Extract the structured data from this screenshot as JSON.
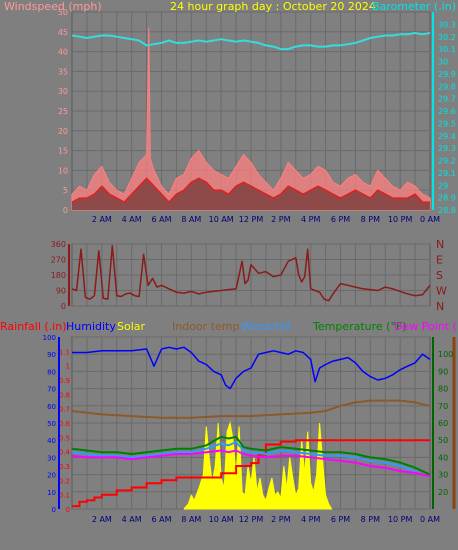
{
  "colors": {
    "background": "#7f7f7f",
    "plot_bg": "#808080",
    "grid": "#666666",
    "title": "#ffff00",
    "wind_label": "#ff9999",
    "baro_label": "#00e5e5",
    "baro_line": "#33dddd",
    "wind_gust": "#ff8080",
    "wind_avg": "#e02020",
    "wind_dark": "#804040",
    "winddir": "#8b1a1a",
    "rain": "#ff0000",
    "humidity": "#0000ff",
    "solar": "#ffff00",
    "indoor": "#8b5a2b",
    "windchill": "#3399ff",
    "temperature": "#008000",
    "dewpoint": "#ff00ff",
    "right_temp_axis": "#006400",
    "right_temp_axis_bar": "#8b4513",
    "axis_blue": "#0000ff"
  },
  "chart_data": [
    {
      "type": "line",
      "title": "24 hour graph day : October 20 2024",
      "x_ticks": [
        "2 AM",
        "4 AM",
        "6 AM",
        "8 AM",
        "10 AM",
        "12 PM",
        "2 PM",
        "4 PM",
        "6 PM",
        "8 PM",
        "10 PM",
        "0 AM"
      ],
      "y_left_label": "Windspeed (mph)",
      "y_left_ticks": [
        "0",
        "5",
        "10",
        "15",
        "20",
        "25",
        "30",
        "35",
        "40",
        "45",
        "50"
      ],
      "y_left_range": [
        0,
        50
      ],
      "y_right_label": "Barometer (.in)",
      "y_right_ticks": [
        "28.8",
        "28.9",
        "29",
        "29.1",
        "29.2",
        "29.3",
        "29.4",
        "29.5",
        "29.6",
        "29.7",
        "29.8",
        "29.9",
        "30",
        "30.1",
        "30.2",
        "30.3"
      ],
      "y_right_range": [
        28.8,
        30.4
      ],
      "series": [
        {
          "name": "Barometer (.in)",
          "axis": "right",
          "x_hours": [
            0,
            0.5,
            1,
            1.5,
            2,
            2.5,
            3,
            3.5,
            4,
            4.5,
            5,
            5.5,
            6,
            6.5,
            7,
            7.5,
            8,
            8.5,
            9,
            9.5,
            10,
            10.5,
            11,
            11.5,
            12,
            12.5,
            13,
            13.5,
            14,
            14.5,
            15,
            15.5,
            16,
            16.5,
            17,
            17.5,
            18,
            18.5,
            19,
            19.5,
            20,
            20.5,
            21,
            21.5,
            22,
            22.5,
            23,
            23.5,
            24
          ],
          "values": [
            30.21,
            30.2,
            30.19,
            30.2,
            30.21,
            30.21,
            30.2,
            30.19,
            30.18,
            30.17,
            30.13,
            30.14,
            30.15,
            30.17,
            30.15,
            30.15,
            30.16,
            30.17,
            30.16,
            30.17,
            30.18,
            30.17,
            30.16,
            30.17,
            30.16,
            30.15,
            30.13,
            30.12,
            30.1,
            30.1,
            30.12,
            30.13,
            30.13,
            30.12,
            30.12,
            30.13,
            30.13,
            30.14,
            30.15,
            30.17,
            30.19,
            30.2,
            30.21,
            30.21,
            30.22,
            30.22,
            30.23,
            30.22,
            30.23
          ]
        },
        {
          "name": "Wind gust (mph)",
          "axis": "left",
          "x_hours": [
            0,
            0.5,
            1,
            1.5,
            2,
            2.5,
            3,
            3.5,
            4,
            4.5,
            5,
            5.15,
            5.25,
            5.5,
            6,
            6.5,
            7,
            7.5,
            8,
            8.5,
            9,
            9.5,
            10,
            10.5,
            11,
            11.5,
            12,
            12.5,
            13,
            13.5,
            14,
            14.5,
            15,
            15.5,
            16,
            16.5,
            17,
            17.5,
            18,
            18.5,
            19,
            19.5,
            20,
            20.5,
            21,
            21.5,
            22,
            22.5,
            23,
            23.5,
            24
          ],
          "values": [
            4,
            6,
            5,
            9,
            11,
            7,
            5,
            4,
            8,
            12,
            14,
            46,
            13,
            10,
            6,
            4,
            8,
            9,
            13,
            15,
            12,
            10,
            9,
            8,
            11,
            14,
            12,
            9,
            7,
            5,
            8,
            12,
            10,
            8,
            9,
            11,
            10,
            7,
            6,
            8,
            9,
            7,
            6,
            10,
            8,
            6,
            5,
            7,
            6,
            4,
            3
          ]
        },
        {
          "name": "Wind average (mph)",
          "axis": "left",
          "x_hours": [
            0,
            0.5,
            1,
            1.5,
            2,
            2.5,
            3,
            3.5,
            4,
            4.5,
            5,
            5.5,
            6,
            6.5,
            7,
            7.5,
            8,
            8.5,
            9,
            9.5,
            10,
            10.5,
            11,
            11.5,
            12,
            12.5,
            13,
            13.5,
            14,
            14.5,
            15,
            15.5,
            16,
            16.5,
            17,
            17.5,
            18,
            18.5,
            19,
            19.5,
            20,
            20.5,
            21,
            21.5,
            22,
            22.5,
            23,
            23.5,
            24
          ],
          "values": [
            2,
            3,
            3,
            4,
            6,
            4,
            3,
            2,
            4,
            6,
            8,
            6,
            4,
            2,
            4,
            5,
            7,
            8,
            7,
            5,
            5,
            4,
            6,
            7,
            6,
            5,
            4,
            3,
            4,
            6,
            5,
            4,
            5,
            6,
            5,
            4,
            3,
            4,
            5,
            4,
            3,
            5,
            4,
            3,
            3,
            3,
            4,
            2,
            2
          ]
        }
      ]
    },
    {
      "type": "line",
      "y_left_ticks": [
        "0",
        "90",
        "180",
        "270",
        "360"
      ],
      "y_left_range": [
        0,
        360
      ],
      "y_right_ticks": [
        "N",
        "W",
        "S",
        "E",
        "N"
      ],
      "series": [
        {
          "name": "Wind direction",
          "x_hours": [
            0,
            0.3,
            0.6,
            0.9,
            1.2,
            1.5,
            1.8,
            2.1,
            2.4,
            2.7,
            3,
            3.3,
            3.6,
            3.9,
            4.2,
            4.5,
            4.8,
            5.1,
            5.4,
            5.7,
            6,
            6.5,
            7,
            7.5,
            8,
            8.5,
            9,
            9.5,
            10,
            10.5,
            11,
            11.2,
            11.4,
            11.6,
            11.8,
            12,
            12.5,
            13,
            13.5,
            14,
            14.5,
            15,
            15.2,
            15.4,
            15.6,
            15.8,
            16,
            16.3,
            16.6,
            16.9,
            17.2,
            17.5,
            18,
            18.5,
            19,
            19.5,
            20,
            20.5,
            21,
            21.5,
            22,
            22.5,
            23,
            23.5,
            24
          ],
          "values": [
            100,
            90,
            330,
            50,
            40,
            60,
            320,
            45,
            40,
            350,
            60,
            55,
            70,
            75,
            60,
            55,
            300,
            120,
            160,
            110,
            120,
            100,
            80,
            75,
            85,
            70,
            80,
            85,
            90,
            95,
            100,
            180,
            260,
            130,
            150,
            240,
            190,
            200,
            170,
            180,
            260,
            280,
            180,
            140,
            170,
            330,
            100,
            90,
            80,
            40,
            30,
            70,
            130,
            120,
            110,
            100,
            95,
            90,
            110,
            100,
            85,
            70,
            60,
            65,
            120
          ]
        }
      ]
    },
    {
      "type": "line",
      "legend": [
        "Rainfall (.in)",
        "Humidity",
        "Solar",
        "Indoor temp",
        "Windchill",
        "Temperature (°F)",
        "Dew Point (°F)"
      ],
      "x_ticks": [
        "2 AM",
        "4 AM",
        "6 AM",
        "8 AM",
        "10 AM",
        "12 PM",
        "2 PM",
        "4 PM",
        "6 PM",
        "8 PM",
        "10 PM",
        "0 AM"
      ],
      "y_left_outer_ticks": [
        "0",
        "0.1",
        "0.2",
        "0.3",
        "0.4",
        "0.5",
        "0.6",
        "0.7",
        "0.8",
        "0.9",
        "1",
        "1.1"
      ],
      "y_left_inner_ticks": [
        "0",
        "10",
        "20",
        "30",
        "40",
        "50",
        "60",
        "70",
        "80",
        "90",
        "100"
      ],
      "y_right_ticks": [
        "20",
        "30",
        "40",
        "50",
        "60",
        "70",
        "80",
        "90",
        "100"
      ],
      "y_right_range": [
        10,
        110
      ],
      "y_left_inner_range": [
        0,
        100
      ],
      "y_left_outer_range": [
        0,
        1.2
      ],
      "series": [
        {
          "name": "Humidity",
          "axis": "left_inner",
          "x_hours": [
            0,
            1,
            2,
            3,
            4,
            5,
            5.5,
            6,
            6.5,
            7,
            7.5,
            8,
            8.5,
            9,
            9.5,
            10,
            10.3,
            10.6,
            11,
            11.5,
            12,
            12.5,
            13,
            13.5,
            14,
            14.5,
            15,
            15.5,
            16,
            16.3,
            16.6,
            17,
            17.5,
            18,
            18.5,
            19,
            19.5,
            20,
            20.5,
            21,
            21.5,
            22,
            22.5,
            23,
            23.5,
            24
          ],
          "values": [
            91,
            91,
            92,
            92,
            92,
            93,
            83,
            93,
            94,
            93,
            94,
            91,
            86,
            84,
            80,
            78,
            72,
            70,
            76,
            80,
            82,
            90,
            91,
            92,
            91,
            90,
            92,
            91,
            87,
            74,
            82,
            84,
            86,
            87,
            88,
            85,
            80,
            77,
            75,
            76,
            78,
            81,
            83,
            85,
            90,
            87
          ]
        },
        {
          "name": "Indoor temp",
          "axis": "right",
          "x_hours": [
            0,
            2,
            4,
            6,
            8,
            10,
            12,
            14,
            16,
            17,
            18,
            19,
            20,
            22,
            23,
            24
          ],
          "values": [
            67,
            65,
            64,
            63,
            63,
            64,
            64,
            65,
            66,
            67,
            70,
            72,
            73,
            73,
            72,
            70
          ]
        },
        {
          "name": "Temperature (°F)",
          "axis": "right",
          "x_hours": [
            0,
            1,
            2,
            3,
            4,
            5,
            6,
            7,
            8,
            9,
            10,
            10.5,
            11,
            11.5,
            12,
            13,
            14,
            15,
            16,
            17,
            18,
            19,
            20,
            21,
            22,
            23,
            23.5,
            24
          ],
          "values": [
            45,
            44,
            43,
            43,
            42,
            43,
            44,
            45,
            45,
            47,
            52,
            51,
            52,
            46,
            45,
            44,
            46,
            45,
            44,
            43,
            43,
            42,
            40,
            39,
            37,
            34,
            32,
            30
          ]
        },
        {
          "name": "Windchill",
          "axis": "right",
          "x_hours": [
            0,
            1,
            2,
            3,
            4,
            5,
            6,
            7,
            8,
            9,
            10,
            10.5,
            11,
            11.5,
            12,
            13,
            14,
            15,
            16,
            17,
            18,
            19,
            20,
            21,
            22,
            23,
            23.5,
            24
          ],
          "values": [
            43,
            42,
            41,
            41,
            40,
            41,
            42,
            43,
            43,
            45,
            48,
            47,
            49,
            44,
            43,
            42,
            44,
            43,
            42,
            41,
            41,
            40,
            38,
            37,
            35,
            32,
            30,
            29
          ]
        },
        {
          "name": "Dew Point (°F)",
          "axis": "right",
          "x_hours": [
            0,
            1,
            2,
            3,
            4,
            5,
            6,
            7,
            8,
            9,
            10,
            10.5,
            11,
            11.5,
            12,
            13,
            14,
            15,
            16,
            17,
            18,
            19,
            20,
            21,
            22,
            23,
            23.5,
            24
          ],
          "values": [
            41,
            40,
            40,
            40,
            39,
            40,
            41,
            42,
            42,
            43,
            44,
            43,
            44,
            42,
            41,
            40,
            41,
            41,
            40,
            39,
            38,
            37,
            35,
            34,
            32,
            31,
            30,
            29
          ]
        },
        {
          "name": "Rainfall (.in)",
          "axis": "left_outer",
          "x_hours": [
            0,
            0.5,
            1,
            1.5,
            2,
            3,
            4,
            5,
            6,
            7,
            8,
            9,
            10,
            11,
            12,
            12.5,
            13,
            14,
            15,
            16,
            17,
            18,
            19,
            20,
            21,
            22,
            23,
            24
          ],
          "values": [
            0.02,
            0.05,
            0.06,
            0.08,
            0.1,
            0.13,
            0.15,
            0.18,
            0.2,
            0.22,
            0.22,
            0.22,
            0.25,
            0.3,
            0.32,
            0.38,
            0.45,
            0.47,
            0.48,
            0.48,
            0.48,
            0.48,
            0.48,
            0.48,
            0.48,
            0.48,
            0.48,
            0.48
          ]
        },
        {
          "name": "Solar",
          "axis": "left_inner",
          "x_hours": [
            7.5,
            7.8,
            8,
            8.2,
            8.5,
            8.8,
            9,
            9.2,
            9.4,
            9.6,
            9.8,
            10,
            10.2,
            10.4,
            10.6,
            10.8,
            11,
            11.2,
            11.4,
            11.6,
            11.8,
            12,
            12.2,
            12.4,
            12.6,
            12.8,
            13,
            13.2,
            13.4,
            13.6,
            13.8,
            14,
            14.2,
            14.4,
            14.6,
            14.8,
            15,
            15.2,
            15.4,
            15.6,
            15.8,
            16,
            16.2,
            16.4,
            16.6,
            16.8,
            17,
            17.2,
            17.4
          ],
          "values": [
            0,
            3,
            8,
            5,
            12,
            20,
            48,
            30,
            15,
            25,
            50,
            18,
            12,
            45,
            50,
            40,
            20,
            48,
            10,
            8,
            25,
            15,
            30,
            10,
            18,
            8,
            5,
            12,
            18,
            8,
            10,
            6,
            25,
            12,
            30,
            18,
            8,
            12,
            40,
            20,
            45,
            15,
            10,
            20,
            50,
            28,
            8,
            3,
            0
          ]
        }
      ]
    }
  ]
}
